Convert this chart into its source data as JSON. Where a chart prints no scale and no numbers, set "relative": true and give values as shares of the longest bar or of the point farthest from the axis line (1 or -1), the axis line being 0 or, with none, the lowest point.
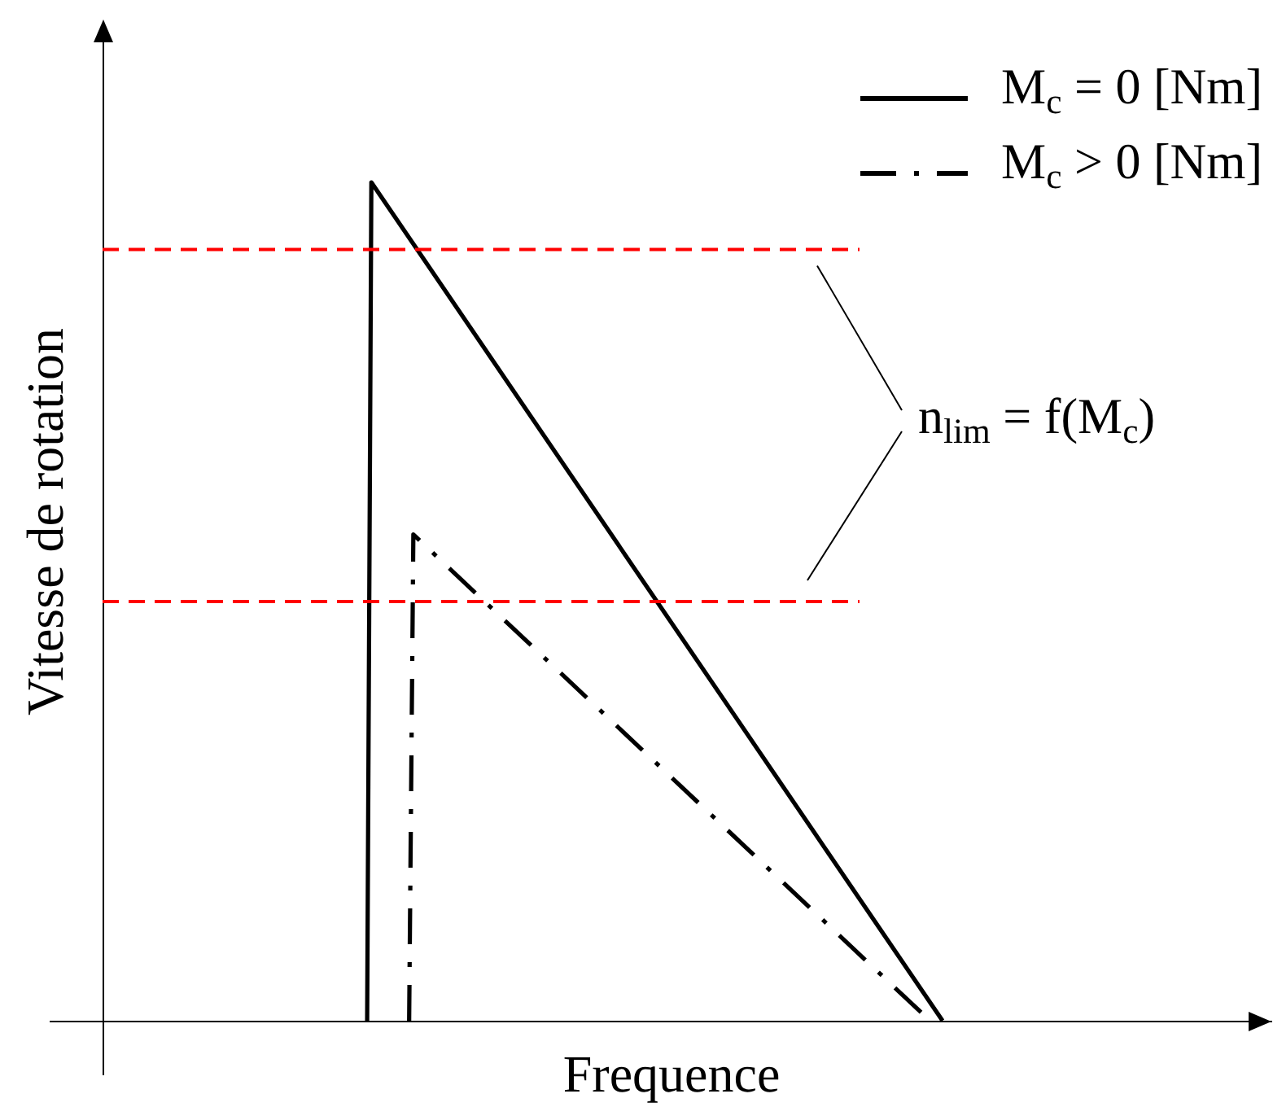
{
  "chart_data": {
    "type": "line",
    "relative": true,
    "xlabel": "Frequence",
    "ylabel": "Vitesse de rotation",
    "legend": "top right",
    "categories": [
      null,
      null,
      null,
      null,
      null,
      null,
      null,
      null,
      null,
      null,
      null,
      null,
      null,
      null,
      null,
      null,
      null,
      null,
      null,
      null,
      null,
      null,
      null,
      null,
      null,
      null,
      null,
      null,
      null,
      null,
      null,
      null,
      null,
      null,
      null,
      null,
      null,
      null,
      null,
      null,
      null,
      null,
      null,
      null,
      null,
      null,
      null,
      null,
      null,
      null,
      null,
      null,
      null,
      null,
      null,
      null,
      null,
      null,
      null,
      null,
      null,
      null,
      null,
      null,
      null,
      null,
      null,
      null,
      null,
      null,
      null,
      null,
      null,
      null,
      null,
      null,
      null,
      null,
      null,
      null,
      null,
      null,
      null,
      null,
      null,
      null,
      null,
      null,
      null,
      null,
      null,
      null,
      null,
      null,
      null,
      null,
      null,
      null,
      null,
      null,
      null,
      null,
      null,
      null,
      null,
      null,
      null,
      null,
      null,
      null,
      null,
      null,
      null,
      null,
      null,
      null,
      null,
      null,
      null,
      null,
      null,
      null,
      null,
      null,
      null,
      null,
      null,
      null,
      null,
      null,
      null,
      null,
      null,
      null,
      null,
      null,
      null,
      null,
      null,
      null,
      null,
      null,
      null,
      null,
      null,
      null,
      null,
      null,
      null,
      null,
      null,
      null,
      null,
      null,
      null,
      null,
      null,
      null,
      null,
      null,
      null,
      null,
      null,
      null,
      null,
      null,
      null,
      null,
      null,
      null,
      null,
      null,
      null,
      null,
      null,
      null,
      null,
      null,
      null,
      null,
      null,
      null,
      null,
      null,
      null,
      null,
      null,
      null,
      null,
      null,
      null,
      null,
      null,
      null,
      null,
      null,
      null,
      null,
      null,
      null,
      null
    ],
    "series": [
      {
        "name": "M$_{c}$ = 0 [Nm]",
        "color": "#000000",
        "line_style": "solid",
        "values": [
          null,
          null,
          null,
          null,
          null,
          null,
          null,
          null,
          null,
          null,
          null,
          null,
          null,
          null,
          null,
          null,
          null,
          null,
          null,
          null,
          null,
          null,
          null,
          null,
          null,
          null,
          null,
          null,
          null,
          null,
          null,
          null,
          null,
          null,
          null,
          null,
          null,
          null,
          null,
          null,
          null,
          null,
          null,
          null,
          null,
          null,
          null,
          null,
          null,
          null,
          null,
          null,
          null,
          null,
          null,
          null,
          null,
          null,
          null,
          null,
          null,
          null,
          null,
          0,
          1,
          null,
          null,
          null,
          null,
          null,
          null,
          null,
          null,
          null,
          null,
          null,
          null,
          null,
          null,
          null,
          null,
          null,
          null,
          null,
          null,
          null,
          null,
          null,
          null,
          null,
          null,
          null,
          null,
          null,
          null,
          null,
          null,
          null,
          null,
          null,
          null,
          null,
          null,
          null,
          null,
          null,
          null,
          null,
          null,
          null,
          null,
          null,
          null,
          null,
          null,
          null,
          null,
          null,
          null,
          null,
          null,
          null,
          null,
          null,
          null,
          null,
          null,
          null,
          null,
          null,
          null,
          null,
          null,
          null,
          null,
          null,
          null,
          null,
          null,
          null,
          null,
          null,
          null,
          null,
          null,
          null,
          null,
          null,
          null,
          null,
          null,
          null,
          null,
          null,
          null,
          null,
          null,
          null,
          null,
          null,
          null,
          null,
          null,
          null,
          null,
          null,
          null,
          null,
          null,
          null,
          null,
          null,
          null,
          null,
          null,
          null,
          null,
          null,
          null,
          null,
          null,
          null,
          null,
          null,
          null,
          null,
          null,
          null,
          null,
          null,
          null,
          null,
          null,
          null,
          null,
          null,
          null,
          null,
          null,
          null,
          0
        ]
      },
      {
        "name": "M$_{c}$ > 0 [Nm]",
        "color": "#000000",
        "line_style": "dashdot",
        "values": [
          null,
          null,
          null,
          null,
          null,
          null,
          null,
          null,
          null,
          null,
          null,
          null,
          null,
          null,
          null,
          null,
          null,
          null,
          null,
          null,
          null,
          null,
          null,
          null,
          null,
          null,
          null,
          null,
          null,
          null,
          null,
          null,
          null,
          null,
          null,
          null,
          null,
          null,
          null,
          null,
          null,
          null,
          null,
          null,
          null,
          null,
          null,
          null,
          null,
          null,
          null,
          null,
          null,
          null,
          null,
          null,
          null,
          null,
          null,
          null,
          null,
          null,
          null,
          null,
          null,
          null,
          null,
          null,
          null,
          null,
          null,
          null,
          null,
          0,
          0.58,
          null,
          null,
          null,
          null,
          null,
          null,
          null,
          null,
          null,
          null,
          null,
          null,
          null,
          null,
          null,
          null,
          null,
          null,
          null,
          null,
          null,
          null,
          null,
          null,
          null,
          null,
          null,
          null,
          null,
          null,
          null,
          null,
          null,
          null,
          null,
          null,
          null,
          null,
          null,
          null,
          null,
          null,
          null,
          null,
          null,
          null,
          null,
          null,
          null,
          null,
          null,
          null,
          null,
          null,
          null,
          null,
          null,
          null,
          null,
          null,
          null,
          null,
          null,
          null,
          null,
          null,
          null,
          null,
          null,
          null,
          null,
          null,
          null,
          null,
          null,
          null,
          null,
          null,
          null,
          null,
          null,
          null,
          null,
          null,
          null,
          null,
          null,
          null,
          null,
          null,
          null,
          null,
          null,
          null,
          null,
          null,
          null,
          null,
          null,
          null,
          null,
          null,
          null,
          null,
          null,
          null,
          null,
          null,
          null,
          null,
          null,
          null,
          null,
          null,
          null,
          null,
          null,
          null,
          null,
          null,
          null,
          null,
          0,
          null,
          null,
          null
        ]
      }
    ],
    "ref_lines": [
      {
        "axis": "y",
        "value": 0.92,
        "color": "#ff0000",
        "line_style": "dashed"
      },
      {
        "axis": "y",
        "value": 0.5,
        "color": "#ff0000",
        "line_style": "dashed"
      }
    ],
    "annotations": [
      "n$_{lim}$ = f(M$_{c}$)"
    ]
  }
}
